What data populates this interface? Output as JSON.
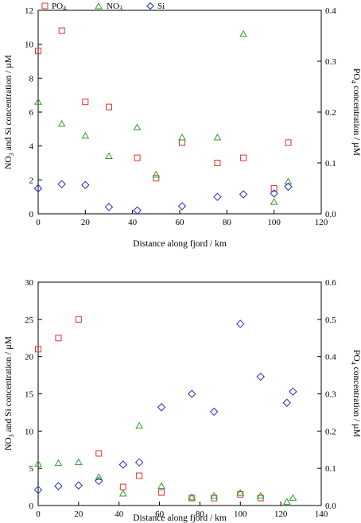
{
  "chart_data": [
    {
      "type": "scatter",
      "xlabel": "Distance along fjord / km",
      "ylabel_left": "NO3 and Si concentration / µM",
      "ylabel_right": "PO4 concentration / µM",
      "xlim": [
        0,
        120
      ],
      "xticks": [
        "0",
        "20",
        "40",
        "60",
        "80",
        "100",
        "120"
      ],
      "ylim_left": [
        0,
        12
      ],
      "yticks_left": [
        "0",
        "2",
        "4",
        "6",
        "8",
        "10",
        "12"
      ],
      "ylim_right": [
        0,
        0.4
      ],
      "yticks_right": [
        "0.0",
        "0.1",
        "0.2",
        "0.3",
        "0.4"
      ],
      "legend": {
        "position": "top",
        "entries": [
          "PO4",
          "NO3",
          "Si"
        ]
      },
      "series": [
        {
          "name": "PO4",
          "axis": "right",
          "color": "#e03030",
          "marker": "square",
          "points": [
            [
              0,
              0.32
            ],
            [
              10,
              0.36
            ],
            [
              20,
              0.22
            ],
            [
              30,
              0.21
            ],
            [
              42,
              0.11
            ],
            [
              50,
              0.07
            ],
            [
              61,
              0.14
            ],
            [
              76,
              0.1
            ],
            [
              87,
              0.11
            ],
            [
              100,
              0.05
            ],
            [
              106,
              0.14
            ]
          ]
        },
        {
          "name": "NO3",
          "axis": "left",
          "color": "#2ca02c",
          "marker": "triangle",
          "points": [
            [
              0,
              6.6
            ],
            [
              10,
              5.3
            ],
            [
              20,
              4.6
            ],
            [
              30,
              3.4
            ],
            [
              42,
              5.1
            ],
            [
              50,
              2.3
            ],
            [
              61,
              4.5
            ],
            [
              76,
              4.5
            ],
            [
              87,
              10.6
            ],
            [
              100,
              0.7
            ],
            [
              106,
              1.9
            ]
          ]
        },
        {
          "name": "Si",
          "axis": "left",
          "color": "#1f2fbf",
          "marker": "diamond",
          "points": [
            [
              0,
              1.5
            ],
            [
              10,
              1.75
            ],
            [
              20,
              1.7
            ],
            [
              30,
              0.4
            ],
            [
              42,
              0.2
            ],
            [
              61,
              0.45
            ],
            [
              76,
              1.0
            ],
            [
              87,
              1.15
            ],
            [
              100,
              1.2
            ],
            [
              106,
              1.6
            ]
          ]
        }
      ]
    },
    {
      "type": "scatter",
      "xlabel": "Distance along fjord / km",
      "ylabel_left": "NO3 and Si concentration / µM",
      "ylabel_right": "PO4 concentration / µM",
      "xlim": [
        0,
        140
      ],
      "xticks": [
        "0",
        "20",
        "40",
        "60",
        "80",
        "100",
        "120",
        "140"
      ],
      "ylim_left": [
        0,
        30
      ],
      "yticks_left": [
        "0",
        "5",
        "10",
        "15",
        "20",
        "25",
        "30"
      ],
      "ylim_right": [
        0,
        0.6
      ],
      "yticks_right": [
        "0.0",
        "0.1",
        "0.2",
        "0.3",
        "0.4",
        "0.5",
        "0.6"
      ],
      "series": [
        {
          "name": "PO4",
          "axis": "right",
          "color": "#e03030",
          "marker": "square",
          "points": [
            [
              0,
              0.42
            ],
            [
              10,
              0.45
            ],
            [
              20,
              0.5
            ],
            [
              30,
              0.14
            ],
            [
              42,
              0.05
            ],
            [
              50,
              0.08
            ],
            [
              61,
              0.035
            ],
            [
              76,
              0.02
            ],
            [
              87,
              0.02
            ],
            [
              100,
              0.03
            ],
            [
              110,
              0.02
            ]
          ]
        },
        {
          "name": "NO3",
          "axis": "left",
          "color": "#2ca02c",
          "marker": "triangle",
          "points": [
            [
              0,
              5.6
            ],
            [
              10,
              5.7
            ],
            [
              20,
              5.8
            ],
            [
              30,
              3.8
            ],
            [
              42,
              1.6
            ],
            [
              50,
              10.7
            ],
            [
              61,
              2.6
            ],
            [
              76,
              1.1
            ],
            [
              87,
              1.3
            ],
            [
              100,
              1.7
            ],
            [
              110,
              1.3
            ],
            [
              123,
              0.5
            ],
            [
              126,
              1.0
            ]
          ]
        },
        {
          "name": "Si",
          "axis": "left",
          "color": "#1f2fbf",
          "marker": "diamond",
          "points": [
            [
              0,
              2.1
            ],
            [
              10,
              2.6
            ],
            [
              20,
              2.7
            ],
            [
              30,
              3.3
            ],
            [
              42,
              5.5
            ],
            [
              50,
              5.8
            ],
            [
              61,
              13.2
            ],
            [
              76,
              15.0
            ],
            [
              87,
              12.6
            ],
            [
              100,
              24.4
            ],
            [
              110,
              17.3
            ],
            [
              123,
              13.8
            ],
            [
              126,
              15.3
            ]
          ]
        }
      ]
    }
  ]
}
